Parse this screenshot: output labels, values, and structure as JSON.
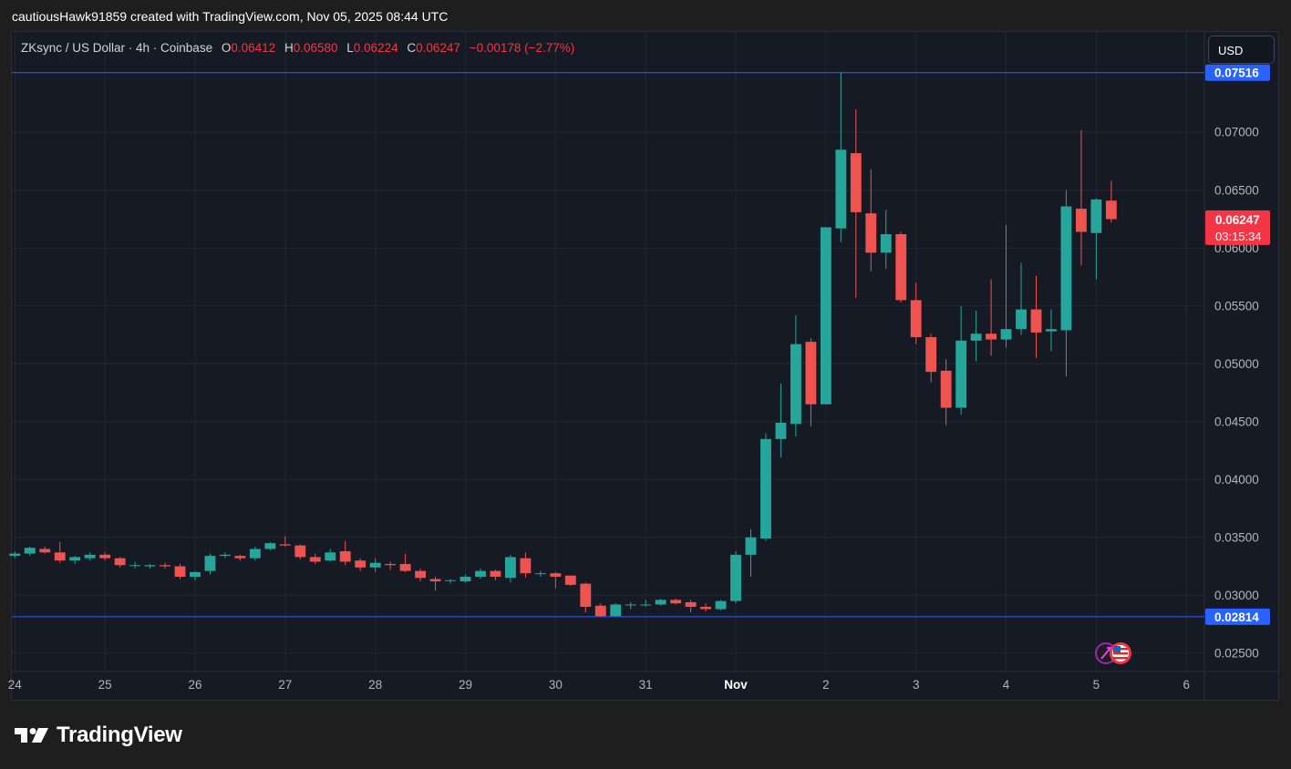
{
  "header": {
    "caption": "cautiousHawk91859 created with TradingView.com, Nov 05, 2025 08:44 UTC"
  },
  "legend": {
    "symbol": "ZKsync / US Dollar · 4h · Coinbase",
    "open_label": "O",
    "open_value": "0.06412",
    "high_label": "H",
    "high_value": "0.06580",
    "low_label": "L",
    "low_value": "0.06224",
    "close_label": "C",
    "close_value": "0.06247",
    "change": "−0.00178 (−2.77%)"
  },
  "toolbar": {
    "currency_button": "USD"
  },
  "brand": {
    "name": "TradingView",
    "icon": "tradingview-logo-icon"
  },
  "overlays": {
    "event_icons": [
      "rocket-icon",
      "us-flag-icon"
    ]
  },
  "colors": {
    "up": "#26a69a",
    "down": "#ef5350",
    "background": "#161a25",
    "grid": "#232733",
    "axis_text": "#b2b5be",
    "level_line": "#2962ff",
    "price_badge": "#f23645"
  },
  "chart_data": {
    "type": "candlestick",
    "interval": "4h",
    "x_axis": {
      "labels": [
        {
          "text": "24",
          "t": 0
        },
        {
          "text": "25",
          "t": 6
        },
        {
          "text": "26",
          "t": 12
        },
        {
          "text": "27",
          "t": 18
        },
        {
          "text": "28",
          "t": 24
        },
        {
          "text": "29",
          "t": 30
        },
        {
          "text": "30",
          "t": 36
        },
        {
          "text": "31",
          "t": 42
        },
        {
          "text": "Nov",
          "t": 48,
          "bold": true
        },
        {
          "text": "2",
          "t": 54
        },
        {
          "text": "3",
          "t": 60
        },
        {
          "text": "4",
          "t": 66
        },
        {
          "text": "5",
          "t": 72
        },
        {
          "text": "6",
          "t": 78
        }
      ],
      "range": [
        -0.2,
        79.2
      ]
    },
    "y_axis": {
      "ticks": [
        "0.02500",
        "0.03000",
        "0.03500",
        "0.04000",
        "0.04500",
        "0.05000",
        "0.05500",
        "0.06000",
        "0.06500",
        "0.07000"
      ],
      "range": [
        0.02341,
        0.07868
      ]
    },
    "horizontal_lines": [
      {
        "price": 0.07516,
        "label": "0.07516"
      },
      {
        "price": 0.02814,
        "label": "0.02814"
      }
    ],
    "last_price": {
      "price": 0.06247,
      "label": "0.06247",
      "countdown": "03:15:34"
    },
    "candles": [
      {
        "o": 0.0334,
        "h": 0.0338,
        "l": 0.0332,
        "c": 0.0336
      },
      {
        "o": 0.0336,
        "h": 0.0342,
        "l": 0.0334,
        "c": 0.0341
      },
      {
        "o": 0.034,
        "h": 0.0342,
        "l": 0.0336,
        "c": 0.0337
      },
      {
        "o": 0.0337,
        "h": 0.0346,
        "l": 0.0328,
        "c": 0.033
      },
      {
        "o": 0.033,
        "h": 0.0334,
        "l": 0.0327,
        "c": 0.0333
      },
      {
        "o": 0.0332,
        "h": 0.0337,
        "l": 0.033,
        "c": 0.0335
      },
      {
        "o": 0.0335,
        "h": 0.0337,
        "l": 0.033,
        "c": 0.0332
      },
      {
        "o": 0.0332,
        "h": 0.0333,
        "l": 0.0324,
        "c": 0.0326
      },
      {
        "o": 0.0326,
        "h": 0.0329,
        "l": 0.0323,
        "c": 0.0326
      },
      {
        "o": 0.0325,
        "h": 0.0327,
        "l": 0.0323,
        "c": 0.0326
      },
      {
        "o": 0.0326,
        "h": 0.0328,
        "l": 0.0323,
        "c": 0.0325
      },
      {
        "o": 0.0325,
        "h": 0.0327,
        "l": 0.0314,
        "c": 0.0316
      },
      {
        "o": 0.0316,
        "h": 0.0321,
        "l": 0.0313,
        "c": 0.032
      },
      {
        "o": 0.0321,
        "h": 0.0336,
        "l": 0.0318,
        "c": 0.0334
      },
      {
        "o": 0.0334,
        "h": 0.0337,
        "l": 0.0332,
        "c": 0.0335
      },
      {
        "o": 0.0334,
        "h": 0.0335,
        "l": 0.033,
        "c": 0.0332
      },
      {
        "o": 0.0332,
        "h": 0.0342,
        "l": 0.033,
        "c": 0.034
      },
      {
        "o": 0.034,
        "h": 0.0346,
        "l": 0.0339,
        "c": 0.0345
      },
      {
        "o": 0.0344,
        "h": 0.0351,
        "l": 0.0342,
        "c": 0.0343
      },
      {
        "o": 0.0343,
        "h": 0.0344,
        "l": 0.0331,
        "c": 0.0333
      },
      {
        "o": 0.0333,
        "h": 0.0336,
        "l": 0.0327,
        "c": 0.0329
      },
      {
        "o": 0.033,
        "h": 0.034,
        "l": 0.0329,
        "c": 0.0337
      },
      {
        "o": 0.0338,
        "h": 0.0347,
        "l": 0.0326,
        "c": 0.0329
      },
      {
        "o": 0.033,
        "h": 0.0332,
        "l": 0.0321,
        "c": 0.0324
      },
      {
        "o": 0.0324,
        "h": 0.0332,
        "l": 0.032,
        "c": 0.0328
      },
      {
        "o": 0.0327,
        "h": 0.0329,
        "l": 0.0322,
        "c": 0.0326
      },
      {
        "o": 0.0327,
        "h": 0.0336,
        "l": 0.032,
        "c": 0.0321
      },
      {
        "o": 0.0321,
        "h": 0.0323,
        "l": 0.0312,
        "c": 0.0315
      },
      {
        "o": 0.0314,
        "h": 0.0316,
        "l": 0.0304,
        "c": 0.0312
      },
      {
        "o": 0.0313,
        "h": 0.0314,
        "l": 0.031,
        "c": 0.0313
      },
      {
        "o": 0.0312,
        "h": 0.0318,
        "l": 0.0311,
        "c": 0.0316
      },
      {
        "o": 0.0316,
        "h": 0.0323,
        "l": 0.0314,
        "c": 0.0321
      },
      {
        "o": 0.0321,
        "h": 0.0322,
        "l": 0.0313,
        "c": 0.0316
      },
      {
        "o": 0.0315,
        "h": 0.0335,
        "l": 0.0311,
        "c": 0.0333
      },
      {
        "o": 0.0332,
        "h": 0.0337,
        "l": 0.0315,
        "c": 0.0319
      },
      {
        "o": 0.0319,
        "h": 0.0321,
        "l": 0.0316,
        "c": 0.0319
      },
      {
        "o": 0.0319,
        "h": 0.032,
        "l": 0.0306,
        "c": 0.0316
      },
      {
        "o": 0.0317,
        "h": 0.0317,
        "l": 0.0308,
        "c": 0.0309
      },
      {
        "o": 0.031,
        "h": 0.0311,
        "l": 0.0285,
        "c": 0.029
      },
      {
        "o": 0.0291,
        "h": 0.0293,
        "l": 0.0281,
        "c": 0.0282
      },
      {
        "o": 0.0282,
        "h": 0.0293,
        "l": 0.0281,
        "c": 0.0292
      },
      {
        "o": 0.0292,
        "h": 0.0294,
        "l": 0.0288,
        "c": 0.0292
      },
      {
        "o": 0.0292,
        "h": 0.0296,
        "l": 0.029,
        "c": 0.0292
      },
      {
        "o": 0.0292,
        "h": 0.0297,
        "l": 0.0291,
        "c": 0.0296
      },
      {
        "o": 0.0296,
        "h": 0.0297,
        "l": 0.0292,
        "c": 0.0293
      },
      {
        "o": 0.0294,
        "h": 0.0296,
        "l": 0.0285,
        "c": 0.029
      },
      {
        "o": 0.029,
        "h": 0.0293,
        "l": 0.0286,
        "c": 0.0288
      },
      {
        "o": 0.0288,
        "h": 0.0296,
        "l": 0.0287,
        "c": 0.0295
      },
      {
        "o": 0.0295,
        "h": 0.0338,
        "l": 0.0293,
        "c": 0.0335
      },
      {
        "o": 0.0335,
        "h": 0.0357,
        "l": 0.0316,
        "c": 0.035
      },
      {
        "o": 0.0349,
        "h": 0.044,
        "l": 0.0347,
        "c": 0.0435
      },
      {
        "o": 0.0435,
        "h": 0.0483,
        "l": 0.0419,
        "c": 0.0449
      },
      {
        "o": 0.0448,
        "h": 0.0542,
        "l": 0.0437,
        "c": 0.0517
      },
      {
        "o": 0.0519,
        "h": 0.0522,
        "l": 0.0446,
        "c": 0.0465
      },
      {
        "o": 0.0465,
        "h": 0.0618,
        "l": 0.0465,
        "c": 0.0618
      },
      {
        "o": 0.0617,
        "h": 0.0752,
        "l": 0.0605,
        "c": 0.0685
      },
      {
        "o": 0.0682,
        "h": 0.072,
        "l": 0.0557,
        "c": 0.0631
      },
      {
        "o": 0.063,
        "h": 0.0668,
        "l": 0.058,
        "c": 0.0596
      },
      {
        "o": 0.0596,
        "h": 0.0633,
        "l": 0.0582,
        "c": 0.0612
      },
      {
        "o": 0.0612,
        "h": 0.0614,
        "l": 0.0553,
        "c": 0.0555
      },
      {
        "o": 0.0555,
        "h": 0.057,
        "l": 0.0517,
        "c": 0.0523
      },
      {
        "o": 0.0523,
        "h": 0.0526,
        "l": 0.0484,
        "c": 0.0493
      },
      {
        "o": 0.0494,
        "h": 0.0504,
        "l": 0.0447,
        "c": 0.0462
      },
      {
        "o": 0.0462,
        "h": 0.055,
        "l": 0.0456,
        "c": 0.052
      },
      {
        "o": 0.052,
        "h": 0.0546,
        "l": 0.0502,
        "c": 0.0526
      },
      {
        "o": 0.0526,
        "h": 0.0573,
        "l": 0.0507,
        "c": 0.0521
      },
      {
        "o": 0.0521,
        "h": 0.062,
        "l": 0.0514,
        "c": 0.053
      },
      {
        "o": 0.053,
        "h": 0.0587,
        "l": 0.0525,
        "c": 0.0547
      },
      {
        "o": 0.0547,
        "h": 0.0576,
        "l": 0.0505,
        "c": 0.0527
      },
      {
        "o": 0.0528,
        "h": 0.0547,
        "l": 0.0511,
        "c": 0.053
      },
      {
        "o": 0.0529,
        "h": 0.065,
        "l": 0.0489,
        "c": 0.0636
      },
      {
        "o": 0.0634,
        "h": 0.0702,
        "l": 0.0585,
        "c": 0.0614
      },
      {
        "o": 0.0613,
        "h": 0.0643,
        "l": 0.0573,
        "c": 0.0642
      },
      {
        "o": 0.0641,
        "h": 0.0658,
        "l": 0.0622,
        "c": 0.0625
      }
    ]
  }
}
